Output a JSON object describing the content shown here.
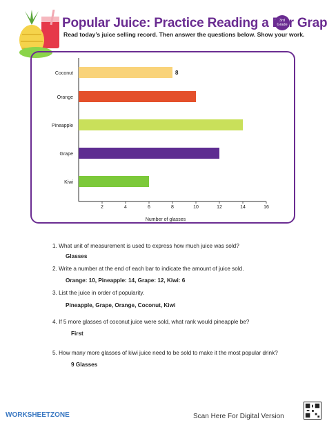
{
  "header": {
    "title": "Popular Juice: Practice Reading a Bar Graph",
    "grade_top": "3rd",
    "grade_bottom": "Grade",
    "subtitle": "Read today’s juice selling record. Then answer the questions below.  Show your work."
  },
  "chart_data": {
    "type": "bar",
    "orientation": "horizontal",
    "categories": [
      "Coconut",
      "Orange",
      "Pineapple",
      "Grape",
      "Kiwi"
    ],
    "values": [
      8,
      10,
      14,
      12,
      6
    ],
    "colors": [
      "#f9d37a",
      "#e4502b",
      "#c9e05a",
      "#5e2d91",
      "#7cc93a"
    ],
    "xlabel": "Number of glasses",
    "xticks": [
      "2",
      "4",
      "6",
      "8",
      "10",
      "12",
      "14",
      "16"
    ],
    "xlim": [
      0,
      16
    ],
    "data_labels": [
      {
        "category": "Coconut",
        "text": "8"
      }
    ]
  },
  "questions": [
    {
      "q": "1.  What unit of measurement is used to express how much juice was sold?",
      "a": "Glasses"
    },
    {
      "q": "2.  Write a number at the end of each bar to indicate the amount of juice sold.",
      "a": "Orange: 10, Pineapple: 14, Grape: 12, Kiwi: 6"
    },
    {
      "q": "3.  List the juice in order of popularity.",
      "a": "Pineapple, Grape, Orange, Coconut, Kiwi"
    },
    {
      "q": "4.  If 5 more glasses of coconut juice were sold, what rank would pineapple be?",
      "a": "First"
    },
    {
      "q": "5.  How many more glasses of kiwi juice need to be sold to make it the most popular drink?",
      "a": "9 Glasses"
    }
  ],
  "footer": {
    "logo": "WORKSHEETZONE",
    "scan": "Scan Here For Digital Version"
  },
  "colors": {
    "accent": "#6a2c91",
    "brand_blue": "#3a78c2"
  }
}
